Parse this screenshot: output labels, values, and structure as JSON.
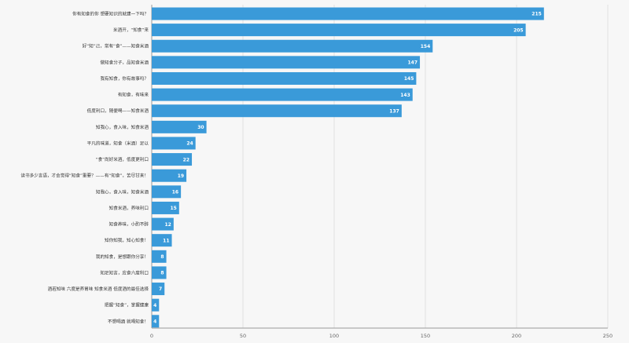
{
  "chart_data": {
    "type": "bar",
    "orientation": "horizontal",
    "categories": [
      "你有知食的你 想要知识的就建一下吗？",
      "米酒开，“知食”来",
      "好“知”己，常有“食”——知食米酒",
      "做知食分子，品知食米酒",
      "我有知食，你有故事吗？",
      "有知食，有味来",
      "低度利口，随便喝——知食米酒",
      "知我心，食入味，知食米酒",
      "平凡的味道，知食（米酒）足以",
      "“食”尚好米酒，低度更利口",
      "读书多少言语，才会觉得“知食”重要？——有“知食”，苦尽甘来！",
      "知我心，食入味，知食米酒",
      "知食米酒，养味利口",
      "知食养味，小酌不醉",
      "知你知我，知心知食！",
      "我的知食，是想跟你分享！",
      "知足知言，应食六度利口",
      "酒若知味 六度是养胃味 知食米酒 低度酒的最佳选择",
      "把握“知食”，掌握健康",
      "不想喝酒 就喝知食！"
    ],
    "values": [
      215,
      205,
      154,
      147,
      145,
      143,
      137,
      30,
      24,
      22,
      19,
      16,
      15,
      12,
      11,
      8,
      8,
      7,
      4,
      4
    ],
    "xlim": [
      0,
      250
    ],
    "xticks": [
      0,
      50,
      100,
      150,
      200,
      250
    ],
    "grid": true,
    "bar_color": "#3a9ad9",
    "value_label_color": "#ffffff"
  }
}
